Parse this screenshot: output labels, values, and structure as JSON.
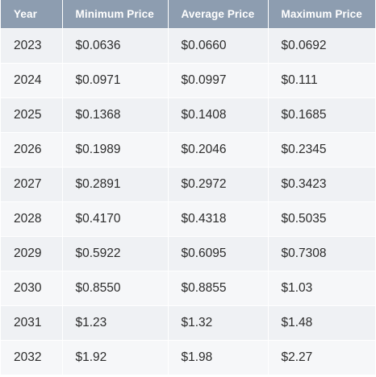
{
  "table": {
    "headers": [
      "Year",
      "Minimum Price",
      "Average Price",
      "Maximum Price"
    ],
    "rows": [
      {
        "year": "2023",
        "min": "$0.0636",
        "avg": "$0.0660",
        "max": "$0.0692"
      },
      {
        "year": "2024",
        "min": "$0.0971",
        "avg": "$0.0997",
        "max": "$0.111"
      },
      {
        "year": "2025",
        "min": "$0.1368",
        "avg": "$0.1408",
        "max": "$0.1685"
      },
      {
        "year": "2026",
        "min": "$0.1989",
        "avg": "$0.2046",
        "max": "$0.2345"
      },
      {
        "year": "2027",
        "min": "$0.2891",
        "avg": "$0.2972",
        "max": "$0.3423"
      },
      {
        "year": "2028",
        "min": "$0.4170",
        "avg": "$0.4318",
        "max": "$0.5035"
      },
      {
        "year": "2029",
        "min": "$0.5922",
        "avg": "$0.6095",
        "max": "$0.7308"
      },
      {
        "year": "2030",
        "min": "$0.8550",
        "avg": "$0.8855",
        "max": "$1.03"
      },
      {
        "year": "2031",
        "min": "$1.23",
        "avg": "$1.32",
        "max": "$1.48"
      },
      {
        "year": "2032",
        "min": "$1.92",
        "avg": "$1.98",
        "max": "$2.27"
      }
    ]
  },
  "colors": {
    "header_bg": "#8d9db0",
    "header_text": "#ffffff",
    "row_bg_odd": "#eff1f4",
    "row_bg_even": "#f6f7f9",
    "cell_text": "#2b2b2b"
  }
}
